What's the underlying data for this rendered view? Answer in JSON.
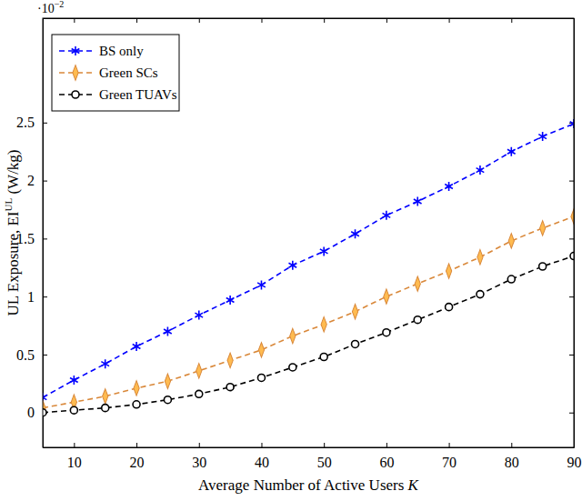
{
  "chart_data": {
    "type": "line",
    "x_label": [
      "Average Number of Active Users ",
      "K"
    ],
    "y_label": [
      "UL Exposure, EI",
      "UL",
      " (W/kg)"
    ],
    "annotations": [
      {
        "text": "·10",
        "superscript": "−2"
      }
    ],
    "x": [
      5,
      10,
      15,
      20,
      25,
      30,
      35,
      40,
      45,
      50,
      55,
      60,
      65,
      70,
      75,
      80,
      85,
      90
    ],
    "series": [
      {
        "name": "BS only",
        "color": "#0000ff",
        "marker": "asterisk",
        "line_style": "dashed",
        "values": [
          0.13,
          0.28,
          0.42,
          0.57,
          0.7,
          0.84,
          0.97,
          1.1,
          1.27,
          1.39,
          1.54,
          1.7,
          1.82,
          1.95,
          2.09,
          2.25,
          2.38,
          2.49
        ]
      },
      {
        "name": "Green SCs",
        "color": "#d9883a",
        "marker": "diamond",
        "line_style": "dashed",
        "values": [
          0.04,
          0.09,
          0.14,
          0.21,
          0.27,
          0.36,
          0.45,
          0.54,
          0.66,
          0.76,
          0.87,
          1.0,
          1.11,
          1.22,
          1.34,
          1.48,
          1.59,
          1.69
        ]
      },
      {
        "name": "Green TUAVs",
        "color": "#000000",
        "marker": "circle",
        "line_style": "dashed",
        "values": [
          0.0,
          0.02,
          0.04,
          0.07,
          0.11,
          0.16,
          0.22,
          0.3,
          0.39,
          0.48,
          0.59,
          0.69,
          0.8,
          0.91,
          1.02,
          1.15,
          1.26,
          1.35
        ]
      }
    ],
    "xlim": [
      5,
      90
    ],
    "xticks": [
      10,
      20,
      30,
      40,
      50,
      60,
      70,
      80,
      90
    ],
    "ylim": [
      -0.3,
      3.4
    ],
    "yticks": [
      0,
      0.5,
      1,
      1.5,
      2,
      2.5
    ],
    "grid": false,
    "legend": "top-left"
  }
}
